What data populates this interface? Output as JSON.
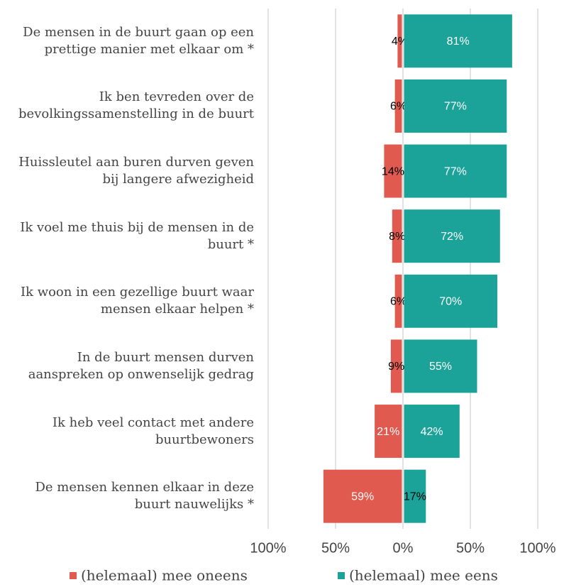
{
  "chart_data": {
    "type": "diverging-bar",
    "categories": [
      "De mensen in de buurt gaan op een prettige manier met elkaar om *",
      "Ik ben tevreden over de bevolkingssamenstelling in de buurt",
      "Huissleutel aan buren durven geven bij langere afwezigheid",
      "Ik voel me thuis bij de mensen in de buurt *",
      "Ik woon in een gezellige buurt waar mensen elkaar helpen *",
      "In de buurt mensen durven aanspreken op onwenselijk gedrag",
      "Ik heb veel contact met andere buurtbewoners",
      "De mensen kennen elkaar in deze buurt nauwelijks *"
    ],
    "series": [
      {
        "name": "(helemaal) mee oneens",
        "color": "#e05a4f",
        "values": [
          -4,
          -6,
          -14,
          -8,
          -6,
          -9,
          -21,
          -59
        ],
        "value_labels": [
          "4%",
          "6%",
          "14%",
          "8%",
          "6%",
          "9%",
          "21%",
          "59%"
        ]
      },
      {
        "name": "(helemaal) mee eens",
        "color": "#1ba39a",
        "values": [
          81,
          77,
          77,
          72,
          70,
          55,
          42,
          17
        ],
        "value_labels": [
          "81%",
          "77%",
          "77%",
          "72%",
          "70%",
          "55%",
          "42%",
          "17%"
        ]
      }
    ],
    "xlim": [
      -100,
      100
    ],
    "xticks": [
      {
        "value": -100,
        "label": "100%"
      },
      {
        "value": -50,
        "label": "50%"
      },
      {
        "value": 0,
        "label": "0%"
      },
      {
        "value": 50,
        "label": "50%"
      },
      {
        "value": 100,
        "label": "100%"
      }
    ],
    "grid": true,
    "legend": "bottom"
  }
}
